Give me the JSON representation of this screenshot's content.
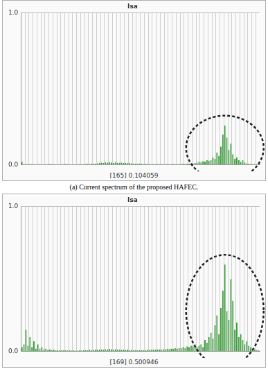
{
  "chart_data": [
    {
      "type": "bar",
      "title": "Isa",
      "categories": [
        null,
        null,
        null,
        null,
        null,
        null,
        null,
        null,
        null,
        null,
        null,
        null,
        null,
        null,
        null,
        null,
        null,
        null,
        null,
        null,
        null,
        null,
        null,
        null,
        null,
        null,
        null,
        null,
        null,
        null,
        null,
        null,
        null,
        null,
        null,
        null,
        null,
        null,
        null,
        null,
        null,
        null,
        null,
        null,
        null,
        null,
        null,
        null,
        null,
        null,
        null,
        null,
        null,
        null,
        null,
        null,
        null,
        null,
        null,
        null,
        null,
        null,
        null,
        null,
        null,
        null,
        null,
        null,
        null,
        null,
        null,
        null,
        null,
        null,
        null,
        null,
        null,
        null,
        null,
        null,
        null,
        null,
        null,
        null,
        null,
        null,
        null,
        null,
        null,
        null,
        null,
        null,
        null,
        null,
        null,
        null,
        null,
        null,
        null,
        null,
        null,
        null,
        null,
        null,
        null,
        null,
        null,
        null,
        null,
        null,
        null,
        null,
        null,
        null,
        null,
        null,
        null,
        null,
        null,
        null
      ],
      "values": [
        0.02,
        0.005,
        0.005,
        0.005,
        0.006,
        0.005,
        0.005,
        0.004,
        0.005,
        0.005,
        0.005,
        0.004,
        0.005,
        0.005,
        0.006,
        0.005,
        0.005,
        0.005,
        0.004,
        0.005,
        0.005,
        0.005,
        0.006,
        0.005,
        0.005,
        0.004,
        0.005,
        0.005,
        0.005,
        0.006,
        0.005,
        0.005,
        0.006,
        0.007,
        0.006,
        0.008,
        0.007,
        0.009,
        0.01,
        0.012,
        0.015,
        0.013,
        0.016,
        0.014,
        0.018,
        0.015,
        0.013,
        0.016,
        0.012,
        0.014,
        0.015,
        0.012,
        0.013,
        0.011,
        0.012,
        0.01,
        0.009,
        0.008,
        0.007,
        0.008,
        0.007,
        0.006,
        0.007,
        0.006,
        0.006,
        0.005,
        0.006,
        0.005,
        0.006,
        0.005,
        0.006,
        0.005,
        0.005,
        0.006,
        0.005,
        0.005,
        0.006,
        0.005,
        0.005,
        0.006,
        0.006,
        0.007,
        0.006,
        0.008,
        0.007,
        0.009,
        0.01,
        0.012,
        0.015,
        0.02,
        0.018,
        0.025,
        0.022,
        0.03,
        0.028,
        0.03,
        0.05,
        0.04,
        0.08,
        0.06,
        0.12,
        0.2,
        0.26,
        0.18,
        0.1,
        0.14,
        0.07,
        0.04,
        0.05,
        0.03,
        0.02,
        0.03,
        0.015,
        0.01,
        0.008,
        0.006,
        0.005,
        0.005,
        0.004,
        0.004
      ],
      "color": "#9be09b",
      "ylim": [
        0,
        1
      ],
      "yticks": [
        {
          "value": 0,
          "label": "0.0"
        },
        {
          "value": 1,
          "label": "1.0"
        }
      ],
      "grid": true,
      "tick_labels": "y",
      "annotation": "[165] 0.104059",
      "caption": "(a) Current spectrum of the proposed HAFEC."
    },
    {
      "type": "bar",
      "title": "Isa",
      "categories": [
        null,
        null,
        null,
        null,
        null,
        null,
        null,
        null,
        null,
        null,
        null,
        null,
        null,
        null,
        null,
        null,
        null,
        null,
        null,
        null,
        null,
        null,
        null,
        null,
        null,
        null,
        null,
        null,
        null,
        null,
        null,
        null,
        null,
        null,
        null,
        null,
        null,
        null,
        null,
        null,
        null,
        null,
        null,
        null,
        null,
        null,
        null,
        null,
        null,
        null,
        null,
        null,
        null,
        null,
        null,
        null,
        null,
        null,
        null,
        null,
        null,
        null,
        null,
        null,
        null,
        null,
        null,
        null,
        null,
        null,
        null,
        null,
        null,
        null,
        null,
        null,
        null,
        null,
        null,
        null,
        null,
        null,
        null,
        null,
        null,
        null,
        null,
        null,
        null,
        null,
        null,
        null,
        null,
        null,
        null,
        null,
        null,
        null,
        null,
        null,
        null,
        null,
        null,
        null,
        null,
        null,
        null,
        null,
        null,
        null,
        null,
        null,
        null,
        null,
        null,
        null,
        null,
        null,
        null,
        null
      ],
      "values": [
        0.03,
        0.05,
        0.15,
        0.04,
        0.1,
        0.03,
        0.07,
        0.02,
        0.05,
        0.02,
        0.03,
        0.015,
        0.02,
        0.01,
        0.015,
        0.01,
        0.012,
        0.008,
        0.01,
        0.008,
        0.01,
        0.008,
        0.009,
        0.007,
        0.008,
        0.007,
        0.008,
        0.006,
        0.007,
        0.008,
        0.007,
        0.008,
        0.01,
        0.009,
        0.012,
        0.01,
        0.011,
        0.013,
        0.012,
        0.014,
        0.015,
        0.013,
        0.016,
        0.014,
        0.017,
        0.015,
        0.014,
        0.016,
        0.013,
        0.014,
        0.012,
        0.013,
        0.011,
        0.012,
        0.01,
        0.011,
        0.009,
        0.01,
        0.008,
        0.009,
        0.008,
        0.009,
        0.01,
        0.012,
        0.011,
        0.013,
        0.012,
        0.014,
        0.013,
        0.015,
        0.014,
        0.016,
        0.015,
        0.018,
        0.016,
        0.02,
        0.018,
        0.022,
        0.02,
        0.025,
        0.022,
        0.03,
        0.025,
        0.035,
        0.03,
        0.04,
        0.035,
        0.05,
        0.03,
        0.04,
        0.05,
        0.03,
        0.08,
        0.06,
        0.1,
        0.13,
        0.09,
        0.18,
        0.25,
        0.12,
        0.3,
        0.42,
        0.6,
        0.28,
        0.22,
        0.5,
        0.35,
        0.15,
        0.2,
        0.1,
        0.12,
        0.08,
        0.05,
        0.07,
        0.04,
        0.03,
        0.02,
        0.015,
        0.01,
        0.008
      ],
      "color": "#9be09b",
      "ylim": [
        0,
        1
      ],
      "yticks": [
        {
          "value": 0,
          "label": "0.0"
        },
        {
          "value": 1,
          "label": "1.0"
        }
      ],
      "grid": true,
      "tick_labels": "y",
      "annotation": "[169] 0.500946"
    }
  ]
}
